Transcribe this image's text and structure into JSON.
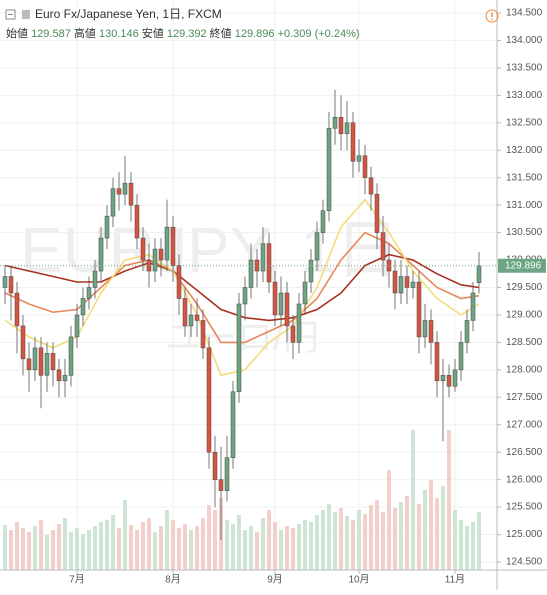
{
  "chart_data": {
    "type": "candlestick",
    "title": "Euro Fx/Japanese Yen, 1日, FXCM",
    "watermark": "EURJPY, 1日",
    "watermark_sub": "ユーロ/円",
    "ohlc_labels": [
      "始値",
      "高値",
      "安値",
      "終値"
    ],
    "change": "+0.309 (+0.24%)",
    "up_color": "#6ba583",
    "down_color": "#d75442",
    "volume_up_color": "#cfe5d4",
    "volume_down_color": "#f2cfcb",
    "ylim": [
      124.354,
      134.737
    ],
    "yticks": [
      {
        "value": 124.5,
        "label": "124.500"
      },
      {
        "value": 125,
        "label": "125.000"
      },
      {
        "value": 125.5,
        "label": "125.500"
      },
      {
        "value": 126,
        "label": "126.000"
      },
      {
        "value": 126.5,
        "label": "126.500"
      },
      {
        "value": 127,
        "label": "127.000"
      },
      {
        "value": 127.5,
        "label": "127.500"
      },
      {
        "value": 128,
        "label": "128.000"
      },
      {
        "value": 128.5,
        "label": "128.500"
      },
      {
        "value": 129,
        "label": "129.000"
      },
      {
        "value": 129.5,
        "label": "129.500"
      },
      {
        "value": 130,
        "label": "130.000"
      },
      {
        "value": 130.5,
        "label": "130.500"
      },
      {
        "value": 131,
        "label": "131.000"
      },
      {
        "value": 131.5,
        "label": "131.500"
      },
      {
        "value": 132,
        "label": "132.000"
      },
      {
        "value": 132.5,
        "label": "132.500"
      },
      {
        "value": 133,
        "label": "133.000"
      },
      {
        "value": 133.5,
        "label": "133.500"
      },
      {
        "value": 134,
        "label": "134.000"
      },
      {
        "value": 134.5,
        "label": "134.500"
      }
    ],
    "grid": true,
    "categories": [
      null,
      null,
      null,
      null,
      null,
      null,
      null,
      null,
      null,
      null,
      null,
      null,
      "7月",
      null,
      null,
      null,
      null,
      null,
      null,
      null,
      null,
      null,
      null,
      null,
      null,
      null,
      null,
      null,
      "8月",
      null,
      null,
      null,
      null,
      null,
      null,
      null,
      null,
      null,
      null,
      null,
      null,
      null,
      null,
      null,
      null,
      "9月",
      null,
      null,
      null,
      null,
      null,
      null,
      null,
      null,
      null,
      null,
      null,
      null,
      null,
      "10月",
      null,
      null,
      null,
      null,
      null,
      null,
      null,
      null,
      null,
      null,
      null,
      null,
      null,
      null,
      null,
      "11月",
      null,
      null,
      null,
      null
    ],
    "open": [
      129.5,
      129.7,
      129.4,
      128.8,
      128.2,
      128.0,
      128.4,
      127.9,
      128.3,
      128.0,
      127.8,
      127.9,
      128.6,
      129.0,
      129.3,
      129.5,
      129.8,
      130.4,
      130.8,
      131.3,
      131.2,
      131.4,
      131.0,
      130.4,
      130.0,
      129.8,
      130.2,
      130.0,
      130.6,
      129.9,
      129.3,
      128.8,
      129.0,
      128.9,
      128.4,
      126.5,
      126.0,
      125.8,
      126.4,
      127.6,
      129.2,
      129.5,
      130.0,
      129.8,
      130.3,
      129.6,
      129.0,
      129.4,
      128.8,
      128.5,
      129.2,
      129.6,
      130.0,
      130.5,
      130.9,
      132.4,
      132.6,
      132.3,
      132.5,
      131.8,
      131.9,
      131.5,
      131.2,
      130.5,
      130.0,
      129.8,
      129.4,
      129.7,
      129.5,
      129.6,
      128.6,
      128.9,
      128.5,
      127.8,
      127.9,
      127.7,
      128.0,
      128.5,
      128.9,
      129.587
    ],
    "high": [
      129.9,
      129.9,
      129.6,
      129.0,
      128.5,
      128.6,
      128.6,
      128.5,
      128.5,
      128.2,
      128.2,
      128.8,
      129.2,
      129.5,
      129.7,
      130.0,
      130.6,
      131.0,
      131.5,
      131.6,
      131.9,
      131.6,
      131.2,
      130.6,
      130.3,
      130.4,
      130.4,
      131.1,
      130.8,
      130.1,
      129.5,
      129.2,
      129.3,
      129.1,
      128.6,
      126.8,
      126.6,
      126.8,
      127.8,
      129.4,
      129.7,
      130.3,
      130.2,
      130.6,
      130.5,
      129.8,
      129.7,
      129.6,
      129.0,
      129.4,
      129.8,
      130.2,
      130.7,
      131.1,
      132.7,
      133.1,
      133.0,
      132.9,
      132.7,
      132.2,
      132.1,
      131.7,
      131.4,
      130.8,
      130.3,
      130.0,
      130.0,
      129.9,
      129.8,
      129.8,
      129.2,
      129.1,
      128.7,
      128.2,
      128.1,
      128.2,
      128.7,
      129.1,
      129.6,
      130.146
    ],
    "low": [
      129.2,
      128.9,
      128.3,
      127.9,
      127.6,
      127.8,
      127.3,
      127.6,
      127.7,
      127.5,
      127.5,
      127.7,
      128.4,
      128.8,
      129.1,
      129.3,
      129.6,
      130.2,
      130.6,
      130.9,
      131.0,
      130.7,
      130.2,
      129.8,
      129.5,
      129.6,
      129.7,
      129.8,
      129.6,
      129.0,
      128.6,
      128.6,
      128.6,
      128.2,
      126.2,
      125.5,
      124.9,
      125.6,
      126.2,
      127.4,
      128.9,
      129.3,
      129.5,
      129.6,
      129.4,
      128.8,
      128.8,
      128.5,
      128.2,
      128.3,
      129.0,
      129.4,
      129.8,
      130.3,
      130.7,
      132.1,
      132.0,
      132.0,
      131.5,
      131.6,
      131.2,
      130.9,
      130.2,
      129.7,
      129.5,
      129.1,
      129.2,
      129.2,
      129.3,
      128.3,
      128.4,
      128.1,
      127.5,
      126.7,
      127.5,
      127.6,
      127.8,
      128.3,
      128.7,
      129.392
    ],
    "close": [
      129.7,
      129.4,
      128.8,
      128.2,
      128.0,
      128.4,
      127.9,
      128.3,
      128.0,
      127.8,
      127.9,
      128.6,
      129.0,
      129.3,
      129.5,
      129.8,
      130.4,
      130.8,
      131.3,
      131.2,
      131.4,
      131.0,
      130.4,
      130.0,
      129.8,
      130.2,
      130.0,
      130.6,
      129.9,
      129.3,
      128.8,
      129.0,
      128.9,
      128.4,
      126.5,
      126.0,
      125.8,
      126.4,
      127.6,
      129.2,
      129.5,
      130.0,
      129.8,
      130.3,
      129.6,
      129.0,
      129.4,
      128.8,
      128.5,
      129.2,
      129.6,
      130.0,
      130.5,
      130.9,
      132.4,
      132.6,
      132.3,
      132.5,
      131.8,
      131.9,
      131.5,
      131.2,
      130.5,
      130.0,
      129.8,
      129.4,
      129.7,
      129.5,
      129.6,
      128.6,
      128.9,
      128.5,
      127.8,
      127.9,
      127.7,
      128.0,
      128.5,
      128.9,
      129.4,
      129.896
    ],
    "volume": [
      45,
      40,
      48,
      42,
      38,
      44,
      50,
      35,
      40,
      46,
      52,
      38,
      42,
      36,
      40,
      44,
      48,
      50,
      55,
      42,
      70,
      45,
      40,
      48,
      52,
      38,
      44,
      60,
      50,
      42,
      46,
      40,
      44,
      52,
      65,
      60,
      72,
      50,
      46,
      55,
      40,
      44,
      38,
      52,
      60,
      48,
      40,
      44,
      42,
      46,
      50,
      48,
      55,
      60,
      66,
      58,
      62,
      54,
      50,
      60,
      56,
      65,
      70,
      58,
      100,
      62,
      68,
      74,
      140,
      66,
      80,
      90,
      72,
      84,
      140,
      60,
      50,
      44,
      48,
      58
    ],
    "series": [
      {
        "color": "#a8321f",
        "x": [
          0,
          4,
          8,
          12,
          16,
          20,
          24,
          28,
          32,
          36,
          40,
          44,
          48,
          52,
          56,
          60,
          64,
          68,
          72,
          76,
          79
        ],
        "values": [
          129.9,
          129.8,
          129.7,
          129.6,
          129.6,
          129.8,
          129.95,
          129.8,
          129.45,
          129.1,
          128.95,
          128.9,
          128.95,
          129.1,
          129.4,
          129.9,
          130.1,
          130.0,
          129.75,
          129.55,
          129.5
        ]
      },
      {
        "color": "#e8875a",
        "x": [
          0,
          4,
          8,
          12,
          16,
          20,
          24,
          28,
          32,
          36,
          40,
          44,
          48,
          52,
          56,
          60,
          64,
          68,
          72,
          76,
          79
        ],
        "values": [
          129.4,
          129.2,
          129.05,
          129.1,
          129.5,
          129.9,
          130.0,
          129.8,
          129.2,
          128.5,
          128.5,
          128.7,
          128.9,
          129.3,
          130.0,
          130.5,
          130.3,
          129.9,
          129.5,
          129.3,
          129.35
        ]
      },
      {
        "color": "#f3dc7a",
        "x": [
          0,
          4,
          8,
          12,
          16,
          20,
          24,
          28,
          32,
          36,
          40,
          44,
          48,
          52,
          56,
          60,
          64,
          68,
          72,
          76,
          79
        ],
        "values": [
          128.9,
          128.6,
          128.4,
          128.6,
          129.4,
          130.0,
          130.1,
          129.8,
          129.0,
          127.9,
          128.0,
          128.5,
          128.8,
          129.5,
          130.6,
          131.1,
          130.5,
          129.8,
          129.3,
          129.0,
          129.2
        ]
      }
    ]
  }
}
